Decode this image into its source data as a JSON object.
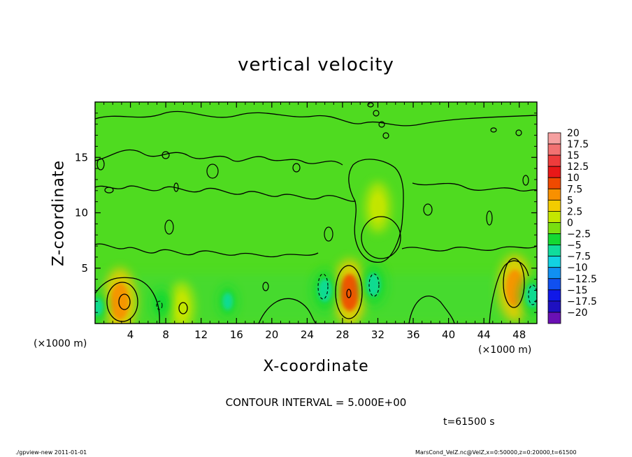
{
  "chart_data": {
    "type": "heatmap",
    "title": "vertical velocity",
    "xlabel": "X-coordinate",
    "ylabel": "Z-coordinate",
    "x_unit_left": "(×1000 m)",
    "x_unit_right": "(×1000 m)",
    "xlim": [
      0,
      50
    ],
    "ylim": [
      0,
      20
    ],
    "x_ticks": [
      4,
      8,
      12,
      16,
      20,
      24,
      28,
      32,
      36,
      40,
      44,
      48
    ],
    "y_ticks": [
      5,
      10,
      15
    ],
    "colorbar": {
      "levels": [
        "20",
        "17.5",
        "15",
        "12.5",
        "10",
        "7.5",
        "5",
        "2.5",
        "0",
        "−2.5",
        "−5",
        "−7.5",
        "−10",
        "−12.5",
        "−15",
        "−17.5",
        "−20"
      ],
      "colors": [
        "#f5a0a0",
        "#f27272",
        "#ee3c3c",
        "#e81818",
        "#f04a00",
        "#f89000",
        "#f2cc00",
        "#c4e600",
        "#79df10",
        "#14d832",
        "#10dc9c",
        "#12d2e2",
        "#1090f2",
        "#1050f0",
        "#1018e8",
        "#1e10c0",
        "#6a10b4"
      ]
    },
    "features": [
      {
        "x": 2.8,
        "z": 2.0,
        "w": 6.5,
        "kind": "updraft"
      },
      {
        "x": 9.8,
        "z": 1.5,
        "w": 3.5,
        "kind": "updraft"
      },
      {
        "x": 28.8,
        "z": 2.8,
        "w": 9.0,
        "kind": "updraft"
      },
      {
        "x": 32.0,
        "z": 10.5,
        "w": 3.0,
        "kind": "updraft"
      },
      {
        "x": 47.5,
        "z": 3.2,
        "w": 6.5,
        "kind": "updraft"
      },
      {
        "x": 26.0,
        "z": 3.0,
        "w": -5.5,
        "kind": "downdraft"
      },
      {
        "x": 31.5,
        "z": 3.5,
        "w": -5.5,
        "kind": "downdraft"
      },
      {
        "x": 49.5,
        "z": 2.5,
        "w": -5.5,
        "kind": "downdraft"
      },
      {
        "x": 0.3,
        "z": 1.5,
        "w": -5.0,
        "kind": "downdraft"
      },
      {
        "x": 15.0,
        "z": 2.0,
        "w": -4.0,
        "kind": "downdraft"
      },
      {
        "x": 7.5,
        "z": 1.8,
        "w": -3.0,
        "kind": "downdraft"
      }
    ]
  },
  "annotations": {
    "contour_interval": "CONTOUR INTERVAL = 5.000E+00",
    "time": "t=61500 s",
    "footer_left": "./gpview-new   2011-01-01",
    "footer_right": "MarsCond_VelZ.nc@VelZ,x=0:50000,z=0:20000,t=61500"
  }
}
